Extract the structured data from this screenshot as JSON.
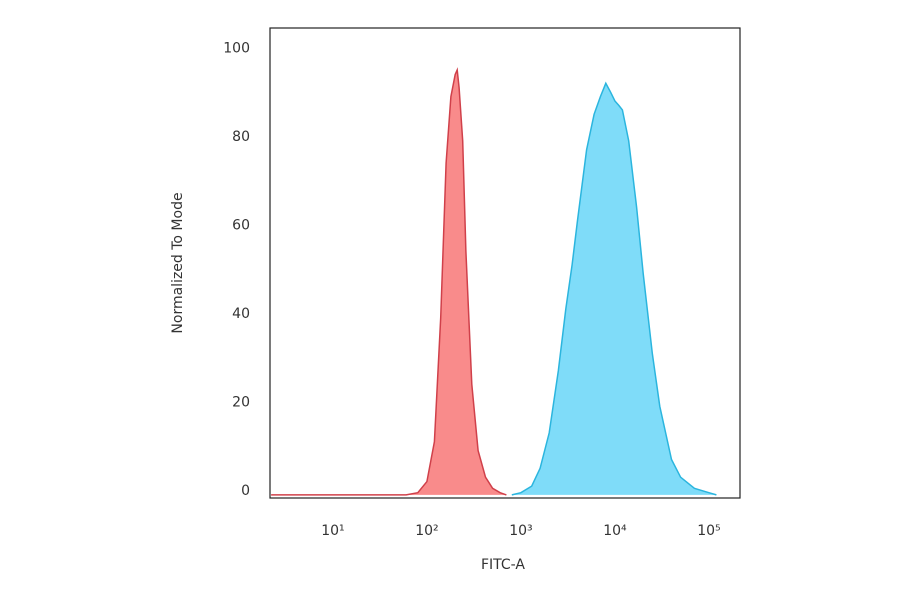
{
  "chart_data": {
    "type": "histogram",
    "xlabel": "FITC-A",
    "ylabel": "Normalized To Mode",
    "xscale": "log",
    "xlim": [
      2.14,
      214000
    ],
    "ylim": [
      -0.7,
      105.5
    ],
    "xticks": [
      {
        "value": 10,
        "label": "10¹"
      },
      {
        "value": 100,
        "label": "10²"
      },
      {
        "value": 1000,
        "label": "10³"
      },
      {
        "value": 10000,
        "label": "10⁴"
      },
      {
        "value": 100000,
        "label": "10⁵"
      }
    ],
    "yticks": [
      0,
      20,
      40,
      60,
      80,
      100
    ],
    "series": [
      {
        "color": "#f98b8b",
        "edge": "#d0404a",
        "x": [
          2.2,
          60,
          80,
          100,
          120,
          140,
          160,
          180,
          200,
          210,
          220,
          240,
          260,
          300,
          350,
          420,
          500,
          600,
          700
        ],
        "values": [
          0,
          0,
          0.5,
          3,
          12,
          40,
          75,
          90,
          95,
          96,
          92,
          80,
          55,
          25,
          10,
          4,
          1.5,
          0.5,
          0
        ]
      },
      {
        "color": "#7fdcf9",
        "edge": "#2bb5de",
        "x": [
          800,
          1000,
          1300,
          1600,
          2000,
          2500,
          3000,
          3500,
          4000,
          5000,
          6000,
          7000,
          8000,
          9000,
          10000,
          11000,
          12000,
          14000,
          17000,
          20000,
          25000,
          30000,
          40000,
          50000,
          70000,
          100000,
          120000
        ],
        "values": [
          0,
          0.5,
          2,
          6,
          14,
          28,
          42,
          52,
          62,
          78,
          86,
          90,
          93,
          91,
          89,
          88,
          87,
          80,
          65,
          50,
          32,
          20,
          8,
          4,
          1.5,
          0.5,
          0
        ]
      }
    ]
  }
}
